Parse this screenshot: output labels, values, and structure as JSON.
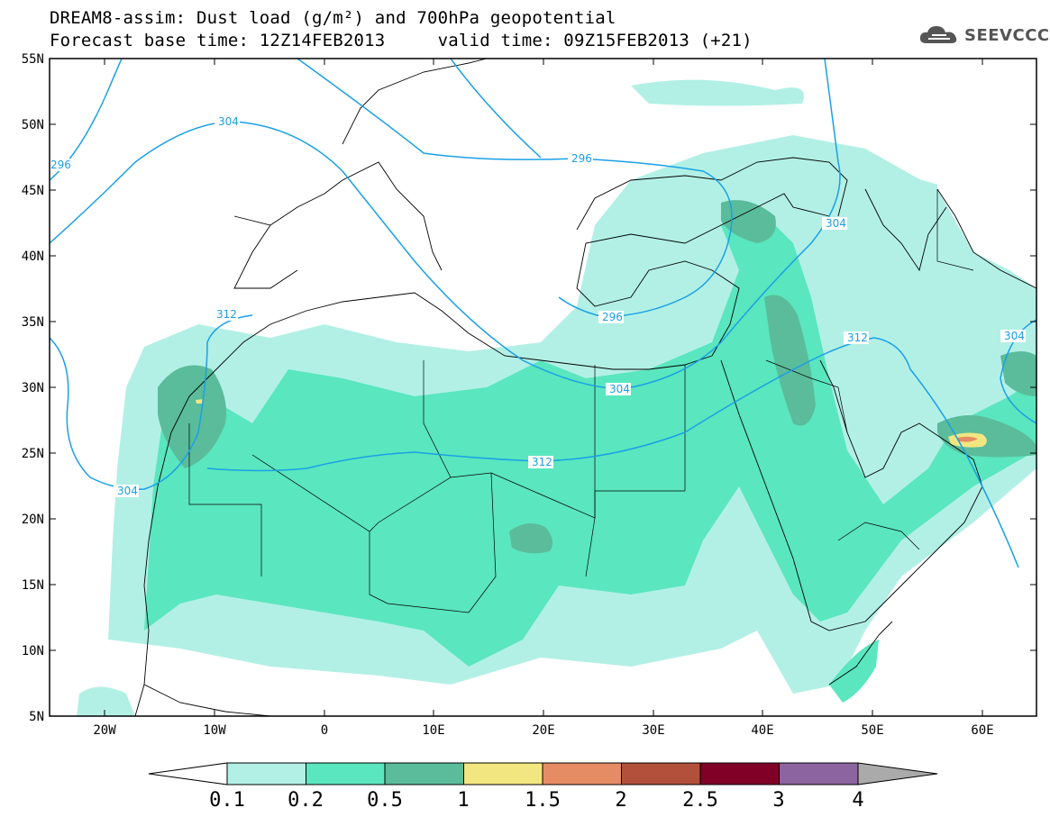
{
  "header": {
    "title_line1": "DREAM8-assim: Dust load (g/m²) and 700hPa geopotential",
    "title_line2": "Forecast base time: 12Z14FEB2013     valid time: 09Z15FEB2013 (+21)"
  },
  "logo": {
    "text": "SEEVCCC",
    "icon": "cloud-icon"
  },
  "map": {
    "projection": "lat-lon",
    "lon_range": [
      -25,
      65
    ],
    "lat_range": [
      5,
      55
    ],
    "lat_ticks": [
      "5N",
      "10N",
      "15N",
      "20N",
      "25N",
      "30N",
      "35N",
      "40N",
      "45N",
      "50N",
      "55N"
    ],
    "lon_ticks": [
      "20W",
      "10W",
      "0",
      "10E",
      "20E",
      "30E",
      "40E",
      "50E",
      "60E"
    ],
    "contour_labels": [
      "296",
      "304",
      "296",
      "304",
      "296",
      "304",
      "312",
      "304",
      "312",
      "312",
      "304"
    ],
    "contour_color": "#1aa0e6"
  },
  "legend": {
    "labels": [
      "0.1",
      "0.2",
      "0.5",
      "1",
      "1.5",
      "2",
      "2.5",
      "3",
      "4"
    ],
    "colors": [
      "#b2f0e6",
      "#5ae6be",
      "#5abc9a",
      "#f2e680",
      "#e68c64",
      "#b2503c",
      "#800028",
      "#8c64a0",
      "#aaaaaa"
    ]
  }
}
